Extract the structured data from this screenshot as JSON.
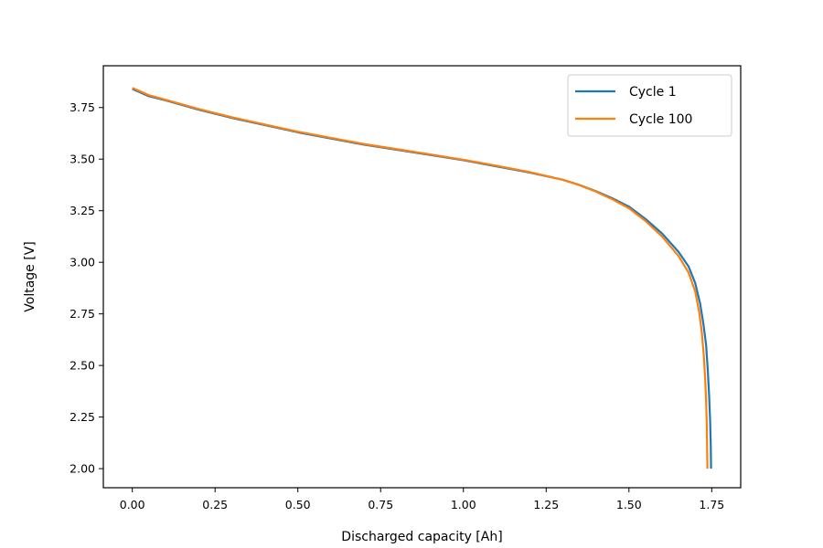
{
  "chart_data": {
    "type": "line",
    "xlabel": "Discharged capacity [Ah]",
    "ylabel": "Voltage [V]",
    "xlim": [
      -0.0875,
      1.8375
    ],
    "ylim": [
      1.9075,
      3.9525
    ],
    "xticks": [
      0.0,
      0.25,
      0.5,
      0.75,
      1.0,
      1.25,
      1.5,
      1.75
    ],
    "xtick_labels": [
      "0.00",
      "0.25",
      "0.50",
      "0.75",
      "1.00",
      "1.25",
      "1.50",
      "1.75"
    ],
    "yticks": [
      2.0,
      2.25,
      2.5,
      2.75,
      3.0,
      3.25,
      3.5,
      3.75
    ],
    "ytick_labels": [
      "2.00",
      "2.25",
      "2.50",
      "2.75",
      "3.00",
      "3.25",
      "3.50",
      "3.75"
    ],
    "grid": false,
    "legend_position": "top-right",
    "series": [
      {
        "name": "Cycle 1",
        "color": "#1f77b4",
        "x": [
          0.0,
          0.05,
          0.1,
          0.2,
          0.3,
          0.4,
          0.5,
          0.6,
          0.7,
          0.8,
          0.9,
          1.0,
          1.1,
          1.2,
          1.3,
          1.35,
          1.4,
          1.45,
          1.5,
          1.55,
          1.6,
          1.65,
          1.68,
          1.7,
          1.715,
          1.725,
          1.733,
          1.738,
          1.742,
          1.745,
          1.747,
          1.748
        ],
        "y": [
          3.84,
          3.805,
          3.785,
          3.74,
          3.7,
          3.665,
          3.63,
          3.6,
          3.57,
          3.545,
          3.52,
          3.495,
          3.465,
          3.435,
          3.4,
          3.375,
          3.345,
          3.31,
          3.27,
          3.21,
          3.14,
          3.05,
          2.98,
          2.9,
          2.8,
          2.7,
          2.6,
          2.48,
          2.36,
          2.24,
          2.12,
          2.0
        ]
      },
      {
        "name": "Cycle 100",
        "color": "#ff7f0e",
        "x": [
          0.0,
          0.05,
          0.1,
          0.2,
          0.3,
          0.4,
          0.5,
          0.6,
          0.7,
          0.8,
          0.9,
          1.0,
          1.1,
          1.2,
          1.3,
          1.35,
          1.4,
          1.45,
          1.5,
          1.55,
          1.6,
          1.65,
          1.68,
          1.7,
          1.712,
          1.72,
          1.726,
          1.73,
          1.733,
          1.735,
          1.736,
          1.737
        ],
        "y": [
          3.845,
          3.81,
          3.788,
          3.743,
          3.703,
          3.668,
          3.633,
          3.603,
          3.573,
          3.548,
          3.523,
          3.497,
          3.468,
          3.437,
          3.4,
          3.374,
          3.343,
          3.305,
          3.262,
          3.2,
          3.125,
          3.03,
          2.95,
          2.86,
          2.76,
          2.66,
          2.55,
          2.44,
          2.33,
          2.22,
          2.11,
          2.0
        ]
      }
    ]
  }
}
